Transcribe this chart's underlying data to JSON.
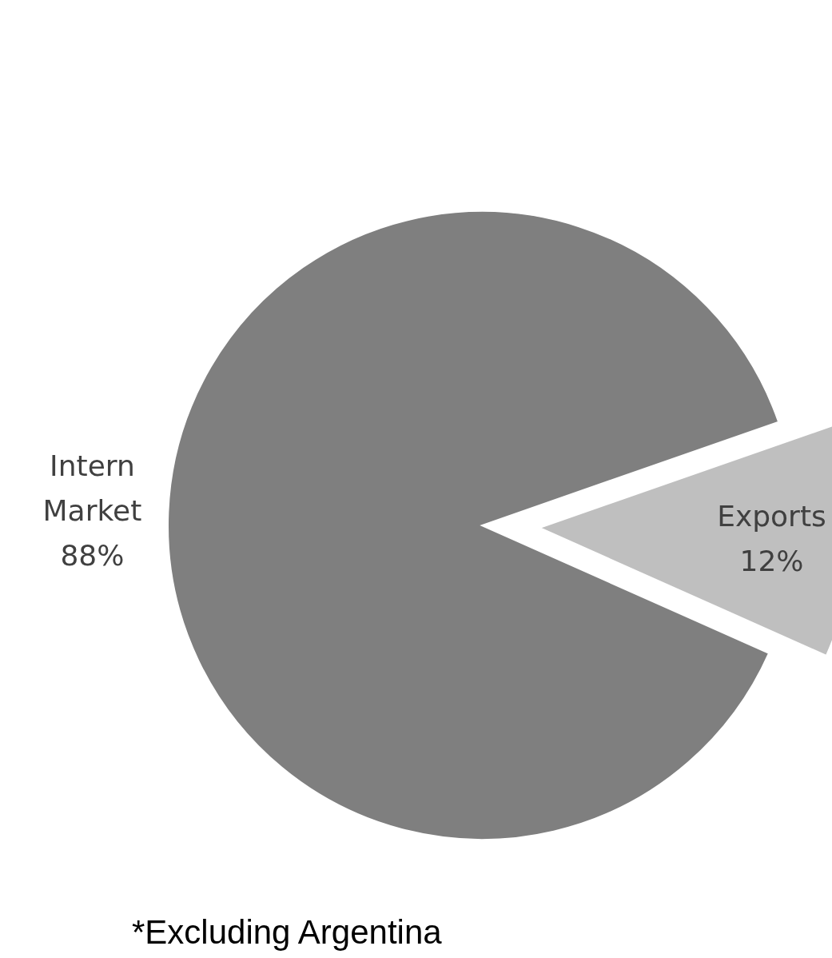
{
  "chart_data": {
    "type": "pie",
    "categories": [
      "Intern Market",
      "Exports"
    ],
    "values": [
      88,
      12
    ],
    "colors": [
      "#7f7f7f",
      "#bfbfbf"
    ],
    "value_labels": [
      "88%",
      "12%"
    ],
    "annotations": [
      "*Excluding Argentina"
    ]
  }
}
